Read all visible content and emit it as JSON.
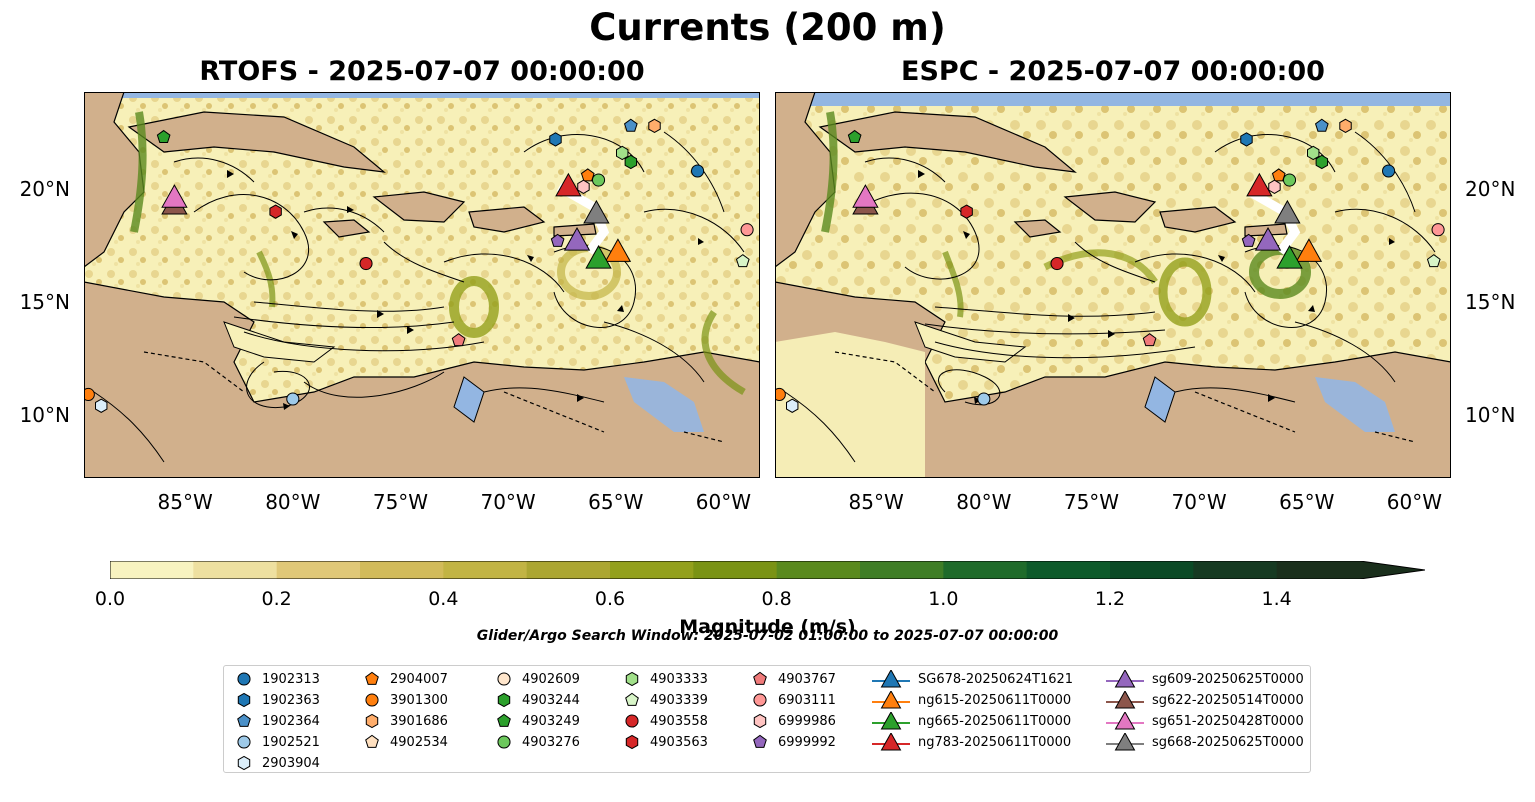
{
  "title": "Currents (200 m)",
  "panels": {
    "left_title": "RTOFS - 2025-07-07 00:00:00",
    "right_title": "ESPC - 2025-07-07 00:00:00"
  },
  "axes": {
    "x_ticks": [
      "85°W",
      "80°W",
      "75°W",
      "70°W",
      "65°W",
      "60°W"
    ],
    "y_ticks": [
      "20°N",
      "15°N",
      "10°N"
    ],
    "lon_range": [
      -89.7,
      -58.3
    ],
    "lat_range": [
      7.2,
      24.3
    ]
  },
  "colorbar": {
    "label": "Magnitude (m/s)",
    "ticks": [
      "0.0",
      "0.2",
      "0.4",
      "0.6",
      "0.8",
      "1.0",
      "1.2",
      "1.4"
    ],
    "range": [
      0,
      1.5
    ],
    "extend": "max",
    "colors": [
      "#f8f3c0",
      "#eee0a0",
      "#e0c878",
      "#d2bb5a",
      "#c2b444",
      "#aca632",
      "#93a01c",
      "#7a9314",
      "#5a8a1e",
      "#3f7e26",
      "#1f6b2a",
      "#0d5a2a",
      "#0b4a26",
      "#163a22",
      "#1a2f1c"
    ]
  },
  "search_window": "Glider/Argo Search Window: 2025-07-02 01:00:00 to 2025-07-07 00:00:00",
  "colors": {
    "ocean": "#f7f0b8",
    "land": "#d1b08c",
    "water_mask": "#93b6e2"
  },
  "legend": {
    "columns": [
      [
        {
          "label": "1902313",
          "marker": "circle",
          "color": "#1f77b4"
        },
        {
          "label": "1902363",
          "marker": "hexagon",
          "color": "#1f77b4"
        },
        {
          "label": "1902364",
          "marker": "pentagon",
          "color": "#4a90c8"
        },
        {
          "label": "1902521",
          "marker": "circle",
          "color": "#9ecae9"
        },
        {
          "label": "2903904",
          "marker": "hexagon",
          "color": "#dbeefa"
        }
      ],
      [
        {
          "label": "2904007",
          "marker": "pentagon",
          "color": "#ff7f0e"
        },
        {
          "label": "3901300",
          "marker": "circle",
          "color": "#ff7f0e"
        },
        {
          "label": "3901686",
          "marker": "hexagon",
          "color": "#ffad6b"
        },
        {
          "label": "4902534",
          "marker": "pentagon",
          "color": "#ffe0c0"
        }
      ],
      [
        {
          "label": "4902609",
          "marker": "circle",
          "color": "#ffe6cc"
        },
        {
          "label": "4903244",
          "marker": "hexagon",
          "color": "#2ca02c"
        },
        {
          "label": "4903249",
          "marker": "pentagon",
          "color": "#2ca02c"
        },
        {
          "label": "4903276",
          "marker": "circle",
          "color": "#6cc85c"
        }
      ],
      [
        {
          "label": "4903333",
          "marker": "hexagon",
          "color": "#a1e08a"
        },
        {
          "label": "4903339",
          "marker": "pentagon",
          "color": "#d8f5c8"
        },
        {
          "label": "4903558",
          "marker": "circle",
          "color": "#d62728"
        },
        {
          "label": "4903563",
          "marker": "hexagon",
          "color": "#d62728"
        }
      ],
      [
        {
          "label": "4903767",
          "marker": "pentagon",
          "color": "#f07b7b"
        },
        {
          "label": "6903111",
          "marker": "circle",
          "color": "#ff9896"
        },
        {
          "label": "6999986",
          "marker": "hexagon",
          "color": "#ffc4c2"
        },
        {
          "label": "6999992",
          "marker": "pentagon",
          "color": "#9467bd"
        }
      ],
      [
        {
          "label": "SG678-20250624T1621",
          "marker": "triangle",
          "color": "#1f77b4"
        },
        {
          "label": "ng615-20250611T0000",
          "marker": "triangle",
          "color": "#ff7f0e"
        },
        {
          "label": "ng665-20250611T0000",
          "marker": "triangle",
          "color": "#2ca02c"
        },
        {
          "label": "ng783-20250611T0000",
          "marker": "triangle",
          "color": "#d62728"
        }
      ],
      [
        {
          "label": "sg609-20250625T0000",
          "marker": "triangle",
          "color": "#9467bd"
        },
        {
          "label": "sg622-20250514T0000",
          "marker": "triangle",
          "color": "#8c564b"
        },
        {
          "label": "sg651-20250428T0000",
          "marker": "triangle",
          "color": "#e377c2"
        },
        {
          "label": "sg668-20250625T0000",
          "marker": "triangle",
          "color": "#7f7f7f"
        }
      ]
    ]
  },
  "platforms": {
    "left": [
      {
        "marker": "triangle",
        "color": "#8c564b",
        "lon": -85.5,
        "lat": 19.3
      },
      {
        "marker": "triangle",
        "color": "#e377c2",
        "lon": -85.5,
        "lat": 19.6
      },
      {
        "marker": "triangle",
        "color": "#d62728",
        "lon": -67.2,
        "lat": 20.1
      },
      {
        "marker": "triangle",
        "color": "#7f7f7f",
        "lon": -65.9,
        "lat": 18.9
      },
      {
        "marker": "triangle",
        "color": "#9467bd",
        "lon": -66.8,
        "lat": 17.7
      },
      {
        "marker": "triangle",
        "color": "#ff7f0e",
        "lon": -64.9,
        "lat": 17.2
      },
      {
        "marker": "triangle",
        "color": "#2ca02c",
        "lon": -65.8,
        "lat": 16.9
      },
      {
        "marker": "pentagon",
        "color": "#2ca02c",
        "lon": -86.0,
        "lat": 22.3
      },
      {
        "marker": "pentagon",
        "color": "#4a90c8",
        "lon": -64.3,
        "lat": 22.8
      },
      {
        "marker": "hexagon",
        "color": "#1f77b4",
        "lon": -67.8,
        "lat": 22.2
      },
      {
        "marker": "hexagon",
        "color": "#ffad6b",
        "lon": -63.2,
        "lat": 22.8
      },
      {
        "marker": "hexagon",
        "color": "#a1e08a",
        "lon": -64.7,
        "lat": 21.6
      },
      {
        "marker": "hexagon",
        "color": "#2ca02c",
        "lon": -64.3,
        "lat": 21.2
      },
      {
        "marker": "circle",
        "color": "#1f77b4",
        "lon": -61.2,
        "lat": 20.8
      },
      {
        "marker": "pentagon",
        "color": "#ff7f0e",
        "lon": -66.3,
        "lat": 20.6
      },
      {
        "marker": "circle",
        "color": "#6cc85c",
        "lon": -65.8,
        "lat": 20.4
      },
      {
        "marker": "hexagon",
        "color": "#ffc4c2",
        "lon": -66.5,
        "lat": 20.1
      },
      {
        "marker": "hexagon",
        "color": "#d62728",
        "lon": -80.8,
        "lat": 19.0
      },
      {
        "marker": "circle",
        "color": "#ff9896",
        "lon": -58.9,
        "lat": 18.2
      },
      {
        "marker": "pentagon",
        "color": "#9467bd",
        "lon": -67.7,
        "lat": 17.7
      },
      {
        "marker": "circle",
        "color": "#d62728",
        "lon": -76.6,
        "lat": 16.7
      },
      {
        "marker": "pentagon",
        "color": "#d8f5c8",
        "lon": -59.1,
        "lat": 16.8
      },
      {
        "marker": "pentagon",
        "color": "#f07b7b",
        "lon": -72.3,
        "lat": 13.3
      },
      {
        "marker": "circle",
        "color": "#9ecae9",
        "lon": -80.0,
        "lat": 10.7
      },
      {
        "marker": "circle",
        "color": "#ff7f0e",
        "lon": -89.5,
        "lat": 10.9
      },
      {
        "marker": "hexagon",
        "color": "#dbeefa",
        "lon": -88.9,
        "lat": 10.4
      }
    ],
    "right": [
      {
        "marker": "triangle",
        "color": "#8c564b",
        "lon": -85.5,
        "lat": 19.3
      },
      {
        "marker": "triangle",
        "color": "#e377c2",
        "lon": -85.5,
        "lat": 19.6
      },
      {
        "marker": "triangle",
        "color": "#d62728",
        "lon": -67.2,
        "lat": 20.1
      },
      {
        "marker": "triangle",
        "color": "#7f7f7f",
        "lon": -65.9,
        "lat": 18.9
      },
      {
        "marker": "triangle",
        "color": "#9467bd",
        "lon": -66.8,
        "lat": 17.7
      },
      {
        "marker": "triangle",
        "color": "#ff7f0e",
        "lon": -64.9,
        "lat": 17.2
      },
      {
        "marker": "triangle",
        "color": "#2ca02c",
        "lon": -65.8,
        "lat": 16.9
      },
      {
        "marker": "pentagon",
        "color": "#2ca02c",
        "lon": -86.0,
        "lat": 22.3
      },
      {
        "marker": "pentagon",
        "color": "#4a90c8",
        "lon": -64.3,
        "lat": 22.8
      },
      {
        "marker": "hexagon",
        "color": "#1f77b4",
        "lon": -67.8,
        "lat": 22.2
      },
      {
        "marker": "hexagon",
        "color": "#ffad6b",
        "lon": -63.2,
        "lat": 22.8
      },
      {
        "marker": "hexagon",
        "color": "#a1e08a",
        "lon": -64.7,
        "lat": 21.6
      },
      {
        "marker": "hexagon",
        "color": "#2ca02c",
        "lon": -64.3,
        "lat": 21.2
      },
      {
        "marker": "circle",
        "color": "#1f77b4",
        "lon": -61.2,
        "lat": 20.8
      },
      {
        "marker": "pentagon",
        "color": "#ff7f0e",
        "lon": -66.3,
        "lat": 20.6
      },
      {
        "marker": "circle",
        "color": "#6cc85c",
        "lon": -65.8,
        "lat": 20.4
      },
      {
        "marker": "hexagon",
        "color": "#ffc4c2",
        "lon": -66.5,
        "lat": 20.1
      },
      {
        "marker": "hexagon",
        "color": "#d62728",
        "lon": -80.8,
        "lat": 19.0
      },
      {
        "marker": "circle",
        "color": "#ff9896",
        "lon": -58.9,
        "lat": 18.2
      },
      {
        "marker": "pentagon",
        "color": "#9467bd",
        "lon": -67.7,
        "lat": 17.7
      },
      {
        "marker": "circle",
        "color": "#d62728",
        "lon": -76.6,
        "lat": 16.7
      },
      {
        "marker": "pentagon",
        "color": "#d8f5c8",
        "lon": -59.1,
        "lat": 16.8
      },
      {
        "marker": "pentagon",
        "color": "#f07b7b",
        "lon": -72.3,
        "lat": 13.3
      },
      {
        "marker": "circle",
        "color": "#9ecae9",
        "lon": -80.0,
        "lat": 10.7
      },
      {
        "marker": "circle",
        "color": "#ff7f0e",
        "lon": -89.5,
        "lat": 10.9
      },
      {
        "marker": "hexagon",
        "color": "#dbeefa",
        "lon": -88.9,
        "lat": 10.4
      }
    ]
  }
}
